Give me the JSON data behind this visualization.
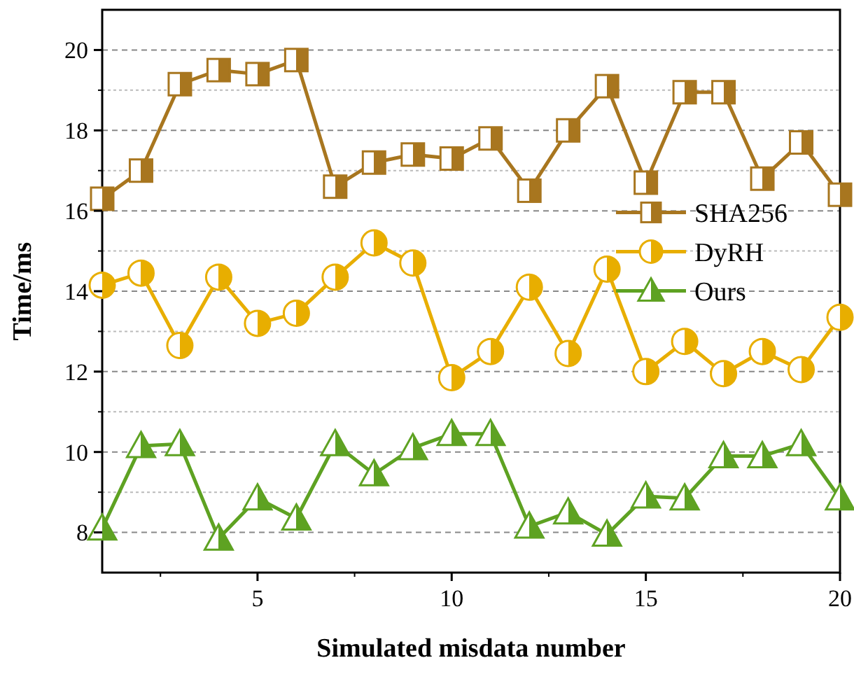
{
  "chart_data": {
    "type": "line",
    "xlabel": "Simulated misdata number",
    "ylabel": "Time/ms",
    "x": [
      1,
      2,
      3,
      4,
      5,
      6,
      7,
      8,
      9,
      10,
      11,
      12,
      13,
      14,
      15,
      16,
      17,
      18,
      19,
      20
    ],
    "xlim": [
      1,
      20
    ],
    "xticks": [
      5,
      10,
      15,
      20
    ],
    "ylim": [
      7,
      21
    ],
    "yticks": [
      8,
      10,
      12,
      14,
      16,
      18,
      20
    ],
    "grid": "y",
    "legend": "right",
    "line_style": "solid",
    "series": [
      {
        "name": "SHA256",
        "color": "#a8761f",
        "marker": "square",
        "values": [
          16.3,
          17.0,
          19.15,
          19.5,
          19.4,
          19.75,
          16.6,
          17.2,
          17.4,
          17.3,
          17.8,
          16.5,
          18.0,
          19.1,
          16.7,
          18.95,
          18.95,
          16.8,
          17.7,
          16.4
        ]
      },
      {
        "name": "DyRH",
        "color": "#e8ae00",
        "marker": "circle",
        "values": [
          14.15,
          14.45,
          12.65,
          14.35,
          13.2,
          13.45,
          14.35,
          15.2,
          14.7,
          11.85,
          12.5,
          14.1,
          12.45,
          14.55,
          12.0,
          12.75,
          11.95,
          12.5,
          12.05,
          13.35
        ]
      },
      {
        "name": "Ours",
        "color": "#5ea222",
        "marker": "triangle",
        "values": [
          8.1,
          10.15,
          10.2,
          7.85,
          8.85,
          8.35,
          10.2,
          9.45,
          10.1,
          10.45,
          10.45,
          8.15,
          8.5,
          7.95,
          8.9,
          8.85,
          9.9,
          9.9,
          10.2,
          8.85
        ]
      }
    ]
  }
}
